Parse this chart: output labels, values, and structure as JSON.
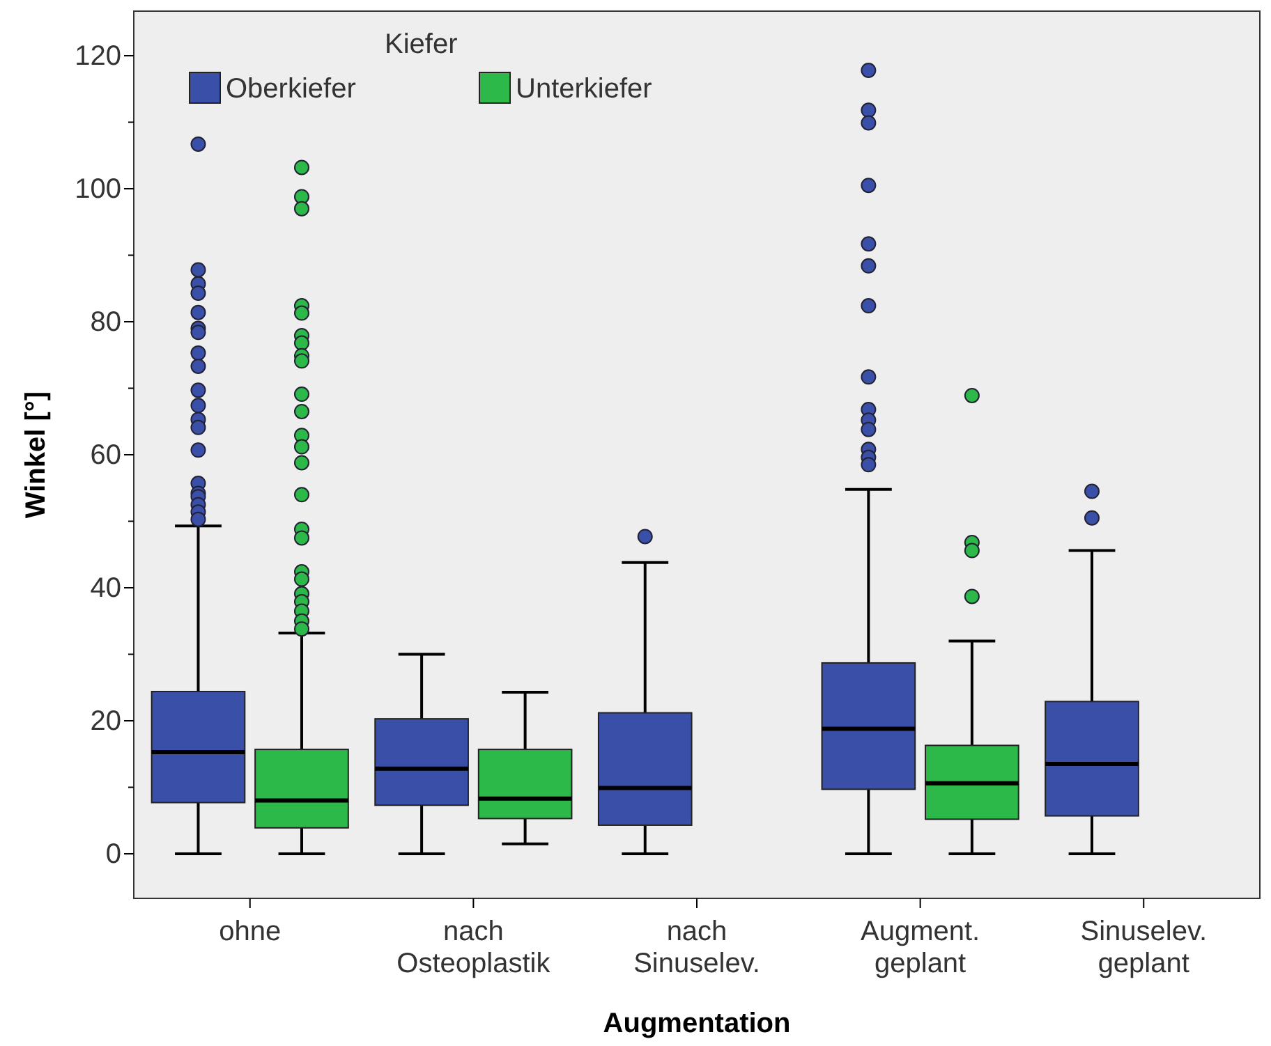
{
  "chart_data": {
    "type": "box",
    "xlabel": "Augmentation",
    "ylabel": "Winkel [°]",
    "legend_title": "Kiefer",
    "legend": "top left",
    "grid": false,
    "categories": [
      "ohne",
      "nach Osteoplastik",
      "nach Sinuselev.",
      "Augment. geplant",
      "Sinuselev. geplant"
    ],
    "ylim": [
      -6.7,
      126.7
    ],
    "yticks": [
      0,
      {
        "value": 10,
        "label": null
      },
      20,
      {
        "value": 30,
        "label": null
      },
      40,
      {
        "value": 50,
        "label": null
      },
      60,
      {
        "value": 70,
        "label": null
      },
      80,
      {
        "value": 90,
        "label": null
      },
      100,
      {
        "value": 110,
        "label": null
      },
      120
    ],
    "series": [
      {
        "name": "Oberkiefer",
        "color": "#3a4fa8",
        "boxes": [
          {
            "low": 0,
            "q1": 7.7,
            "median": 15.3,
            "q3": 24.4,
            "high": 49.3,
            "outliers": [
              106.7,
              87.8,
              85.7,
              84.3,
              81.4,
              79.0,
              78.4,
              75.3,
              73.3,
              69.7,
              67.4,
              65.3,
              64.1,
              60.7,
              55.7,
              54.2,
              53.7,
              52.5,
              51.4,
              50.3
            ]
          },
          {
            "low": 0,
            "q1": 7.3,
            "median": 12.8,
            "q3": 20.3,
            "high": 30.0
          },
          {
            "low": 0,
            "q1": 4.3,
            "median": 9.9,
            "q3": 21.2,
            "high": 43.8,
            "outliers": [
              47.7
            ]
          },
          {
            "low": 0,
            "q1": 9.7,
            "median": 18.8,
            "q3": 28.7,
            "high": 54.8,
            "outliers": [
              117.8,
              111.8,
              109.9,
              100.5,
              91.7,
              88.4,
              82.4,
              71.7,
              66.8,
              65.2,
              63.8,
              60.8,
              59.6,
              58.5
            ]
          },
          {
            "low": 0,
            "q1": 5.7,
            "median": 13.5,
            "q3": 22.9,
            "high": 45.6,
            "outliers": [
              54.5,
              50.5
            ]
          }
        ]
      },
      {
        "name": "Unterkiefer",
        "color": "#2db84a",
        "boxes": [
          {
            "low": 0,
            "q1": 3.9,
            "median": 8.0,
            "q3": 15.7,
            "high": 33.2,
            "outliers": [
              103.2,
              98.8,
              97.0,
              82.4,
              81.3,
              77.9,
              76.8,
              74.9,
              74.1,
              69.1,
              66.5,
              62.9,
              61.2,
              58.8,
              54.0,
              48.8,
              47.5,
              42.4,
              41.3,
              39.1,
              37.9,
              36.5,
              35.0,
              33.8
            ]
          },
          {
            "low": 1.5,
            "q1": 5.3,
            "median": 8.3,
            "q3": 15.7,
            "high": 24.3
          },
          null,
          {
            "low": 0,
            "q1": 5.2,
            "median": 10.6,
            "q3": 16.3,
            "high": 32.0,
            "outliers": [
              68.9,
              46.8,
              45.6,
              38.7
            ]
          },
          null
        ]
      }
    ]
  }
}
